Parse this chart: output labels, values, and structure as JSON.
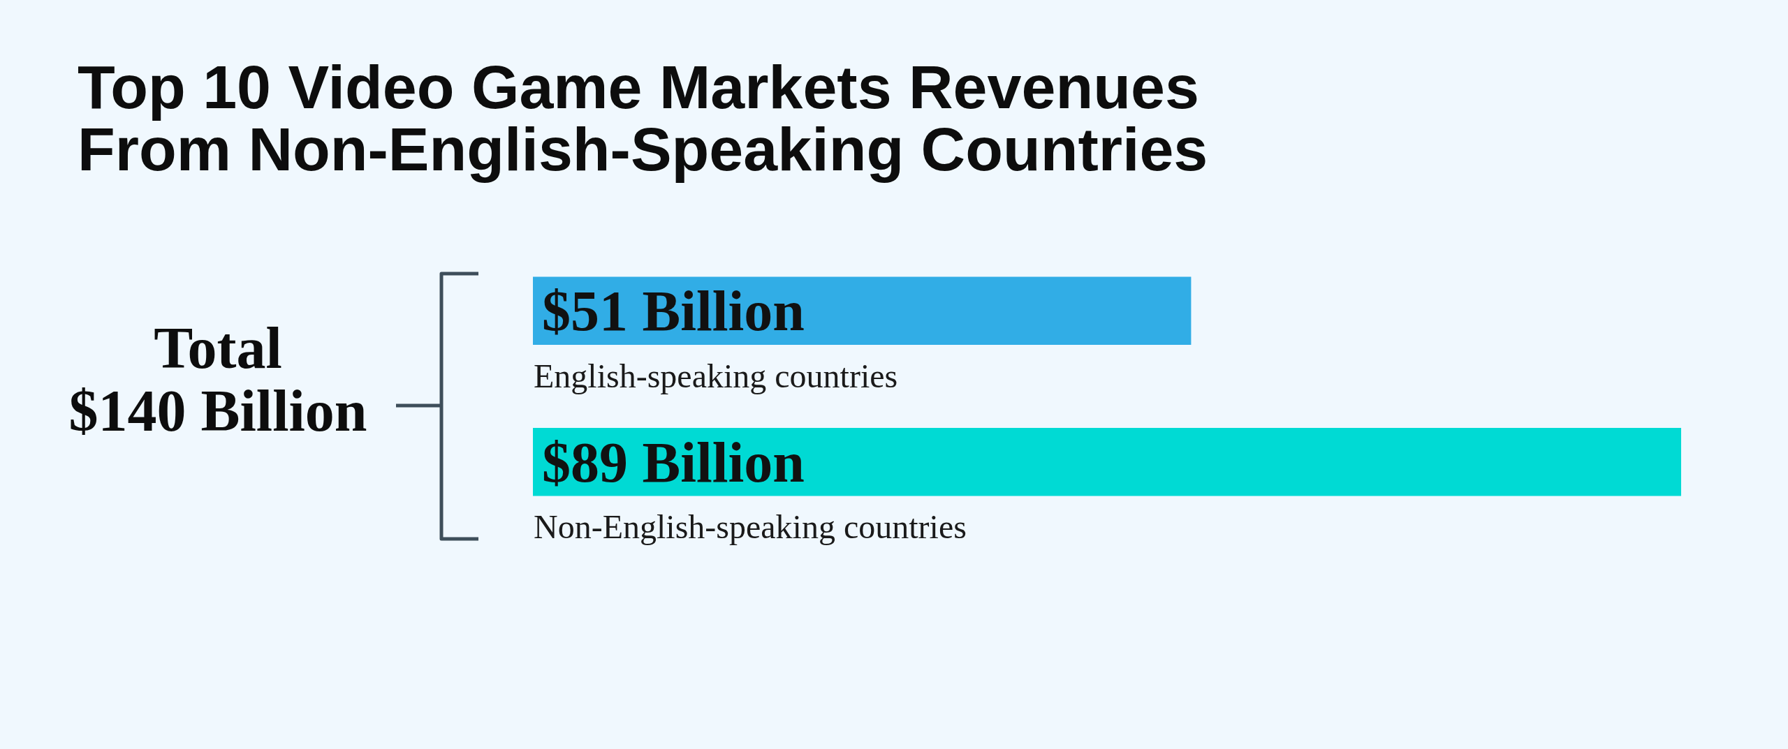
{
  "chart_data": {
    "type": "bar",
    "orientation": "horizontal",
    "title": "Top 10 Video Game Markets Revenues From Non-English-Speaking Countries",
    "categories": [
      "English-speaking countries",
      "Non-English-speaking countries"
    ],
    "values": [
      51,
      89
    ],
    "colors": [
      "#31ade6",
      "#00dad4"
    ],
    "value_labels": [
      "$51 Billion",
      "$89 Billion"
    ],
    "annotations": [
      "Total\n$140 Billion"
    ]
  }
}
